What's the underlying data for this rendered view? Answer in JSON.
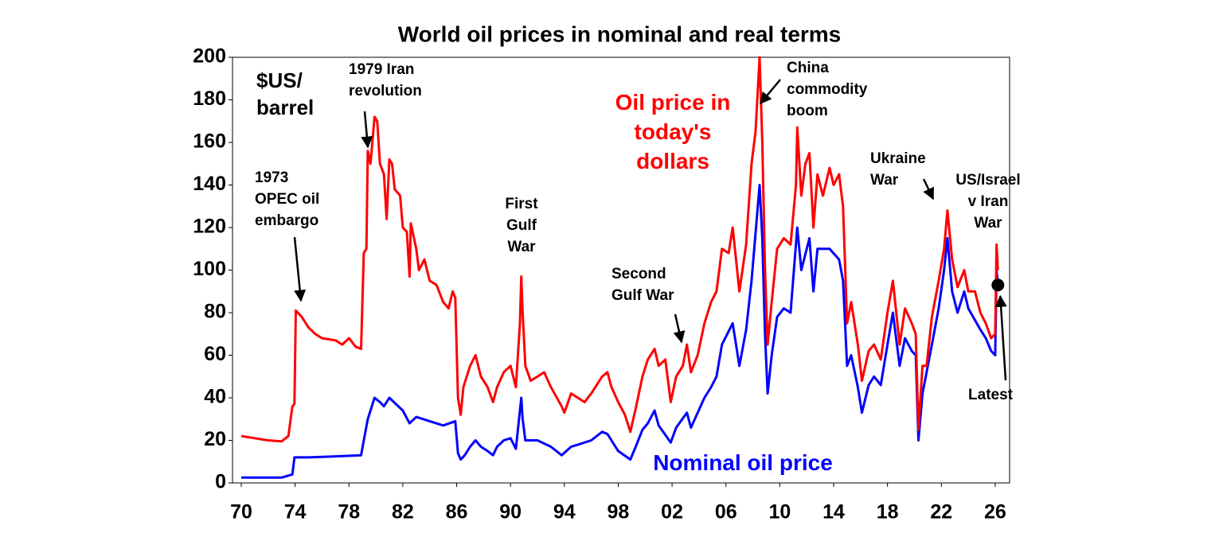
{
  "chart_data": {
    "type": "line",
    "title": "World oil prices in nominal and real terms",
    "y_label": [
      "$US/",
      "barrel"
    ],
    "xlim": [
      1969.35,
      2027.07
    ],
    "ylim": [
      0,
      200
    ],
    "xticks": [
      {
        "value": 1970,
        "label": "70"
      },
      {
        "value": 1974,
        "label": "74"
      },
      {
        "value": 1978,
        "label": "78"
      },
      {
        "value": 1982,
        "label": "82"
      },
      {
        "value": 1986,
        "label": "86"
      },
      {
        "value": 1990,
        "label": "90"
      },
      {
        "value": 1994,
        "label": "94"
      },
      {
        "value": 1998,
        "label": "98"
      },
      {
        "value": 2002,
        "label": "02"
      },
      {
        "value": 2006,
        "label": "06"
      },
      {
        "value": 2010,
        "label": "10"
      },
      {
        "value": 2014,
        "label": "14"
      },
      {
        "value": 2018,
        "label": "18"
      },
      {
        "value": 2022,
        "label": "22"
      },
      {
        "value": 2026,
        "label": "26"
      }
    ],
    "yticks": [
      0,
      20,
      40,
      60,
      80,
      100,
      120,
      140,
      160,
      180,
      200
    ],
    "series": [
      {
        "name": "Oil price in today's dollars",
        "color": "#ff0000",
        "x": [
          1970,
          1971,
          1972,
          1973,
          1973.5,
          1973.8,
          1973.95,
          1974.05,
          1974.5,
          1975,
          1975.5,
          1976,
          1977,
          1977.5,
          1978,
          1978.5,
          1978.9,
          1979.1,
          1979.3,
          1979.4,
          1979.6,
          1979.9,
          1980.1,
          1980.3,
          1980.6,
          1980.8,
          1981,
          1981.2,
          1981.4,
          1981.8,
          1982,
          1982.3,
          1982.5,
          1982.6,
          1983,
          1983.2,
          1983.6,
          1984,
          1984.5,
          1985,
          1985.4,
          1985.7,
          1985.9,
          1986.1,
          1986.3,
          1986.5,
          1987,
          1987.4,
          1987.8,
          1988.3,
          1988.7,
          1989,
          1989.5,
          1990,
          1990.4,
          1990.7,
          1990.8,
          1990.9,
          1991.1,
          1991.5,
          1992,
          1992.5,
          1993,
          1993.8,
          1994,
          1994.5,
          1995,
          1995.5,
          1996,
          1996.8,
          1997.2,
          1997.5,
          1998,
          1998.5,
          1998.9,
          1999.3,
          1999.8,
          2000.2,
          2000.7,
          2001,
          2001.5,
          2001.9,
          2002.3,
          2002.8,
          2003.1,
          2003.4,
          2003.9,
          2004.4,
          2004.9,
          2005.3,
          2005.7,
          2006.2,
          2006.5,
          2007,
          2007.5,
          2007.9,
          2008.2,
          2008.5,
          2008.7,
          2008.9,
          2009.1,
          2009.4,
          2009.8,
          2010.3,
          2010.8,
          2011.2,
          2011.3,
          2011.6,
          2011.9,
          2012.2,
          2012.5,
          2012.8,
          2013.2,
          2013.7,
          2014,
          2014.4,
          2014.7,
          2015,
          2015.3,
          2015.8,
          2016.1,
          2016.6,
          2017,
          2017.5,
          2018,
          2018.4,
          2018.9,
          2019.3,
          2019.8,
          2020.1,
          2020.3,
          2020.6,
          2020.9,
          2021.3,
          2021.8,
          2022.2,
          2022.45,
          2022.8,
          2023.2,
          2023.7,
          2024,
          2024.5,
          2024.9,
          2025.3,
          2025.7,
          2026,
          2026.1,
          2026.2
        ],
        "values": [
          22,
          21,
          20,
          19.5,
          22,
          36,
          37,
          81,
          78,
          73,
          70,
          68,
          67,
          65,
          68,
          64,
          63,
          108,
          110,
          156,
          150,
          172,
          170,
          150,
          145,
          124,
          152,
          150,
          138,
          135,
          120,
          118,
          97,
          122,
          110,
          100,
          105,
          95,
          93,
          85,
          82,
          90,
          87,
          40,
          32,
          45,
          55,
          60,
          50,
          45,
          38,
          45,
          52,
          55,
          45,
          75,
          97,
          80,
          55,
          48,
          50,
          52,
          45,
          36,
          33,
          42,
          40,
          38,
          42,
          50,
          52,
          45,
          38,
          32,
          24,
          35,
          50,
          58,
          63,
          55,
          58,
          38,
          50,
          55,
          65,
          52,
          60,
          75,
          85,
          90,
          110,
          108,
          120,
          90,
          112,
          150,
          165,
          200,
          160,
          100,
          65,
          85,
          110,
          115,
          112,
          140,
          167,
          135,
          150,
          155,
          120,
          145,
          135,
          148,
          140,
          145,
          130,
          75,
          85,
          65,
          48,
          62,
          65,
          58,
          80,
          95,
          65,
          82,
          75,
          70,
          25,
          55,
          55,
          78,
          95,
          110,
          128,
          105,
          92,
          100,
          90,
          90,
          80,
          75,
          68,
          70,
          112,
          100
        ]
      },
      {
        "name": "Nominal oil price",
        "color": "#0000ff",
        "x": [
          1970,
          1973,
          1973.8,
          1973.95,
          1975,
          1977,
          1978.9,
          1979.1,
          1979.4,
          1979.9,
          1980.3,
          1980.6,
          1981,
          1981.5,
          1982,
          1982.5,
          1983,
          1984,
          1985,
          1985.9,
          1986.1,
          1986.3,
          1986.6,
          1987,
          1987.4,
          1987.8,
          1988.3,
          1988.7,
          1989,
          1989.5,
          1990,
          1990.4,
          1990.8,
          1990.9,
          1991.1,
          1992,
          1993,
          1993.8,
          1994.5,
          1995,
          1996,
          1996.8,
          1997.2,
          1998,
          1998.9,
          1999.3,
          1999.8,
          2000.2,
          2000.7,
          2001,
          2001.9,
          2002.3,
          2003.1,
          2003.4,
          2004.4,
          2004.9,
          2005.3,
          2005.7,
          2006.5,
          2007,
          2007.5,
          2007.9,
          2008.5,
          2008.7,
          2008.9,
          2009.1,
          2009.4,
          2009.8,
          2010.3,
          2010.8,
          2011.3,
          2011.6,
          2012.2,
          2012.5,
          2012.8,
          2013.7,
          2014.4,
          2014.7,
          2015,
          2015.3,
          2015.8,
          2016.1,
          2016.6,
          2017,
          2017.5,
          2018,
          2018.4,
          2018.9,
          2019.3,
          2019.8,
          2020.1,
          2020.3,
          2020.6,
          2021.3,
          2021.8,
          2022.2,
          2022.45,
          2022.8,
          2023.2,
          2023.7,
          2024,
          2024.9,
          2025.3,
          2025.7,
          2026,
          2026.1,
          2026.2
        ],
        "values": [
          2.5,
          2.5,
          4,
          12,
          12,
          12.5,
          13,
          20,
          30,
          40,
          38,
          36,
          40,
          37,
          34,
          28,
          31,
          29,
          27,
          29,
          14,
          11,
          13,
          17,
          20,
          17,
          15,
          13,
          17,
          20,
          21,
          16,
          40,
          30,
          20,
          20,
          17,
          13,
          17,
          18,
          20,
          24,
          23,
          15,
          11,
          17,
          25,
          28,
          34,
          27,
          19,
          26,
          33,
          26,
          40,
          45,
          50,
          65,
          75,
          55,
          72,
          95,
          140,
          115,
          70,
          42,
          60,
          78,
          82,
          80,
          120,
          100,
          115,
          90,
          110,
          110,
          105,
          95,
          55,
          60,
          45,
          33,
          46,
          50,
          46,
          65,
          80,
          55,
          68,
          62,
          60,
          20,
          42,
          65,
          82,
          100,
          115,
          90,
          80,
          90,
          82,
          72,
          68,
          62,
          60,
          100,
          93
        ]
      }
    ],
    "latest": {
      "label": "Latest",
      "x": 2026.2,
      "y": 93
    },
    "annotations": [
      [
        "1973",
        "OPEC oil",
        "embargo"
      ],
      [
        "1979 Iran",
        "revolution"
      ],
      [
        "First",
        "Gulf",
        "War"
      ],
      [
        "Second",
        "Gulf War"
      ],
      [
        "China",
        "commodity",
        "boom"
      ],
      [
        "Ukraine",
        "War"
      ],
      [
        "US/Israel",
        "v Iran",
        "War"
      ]
    ]
  }
}
